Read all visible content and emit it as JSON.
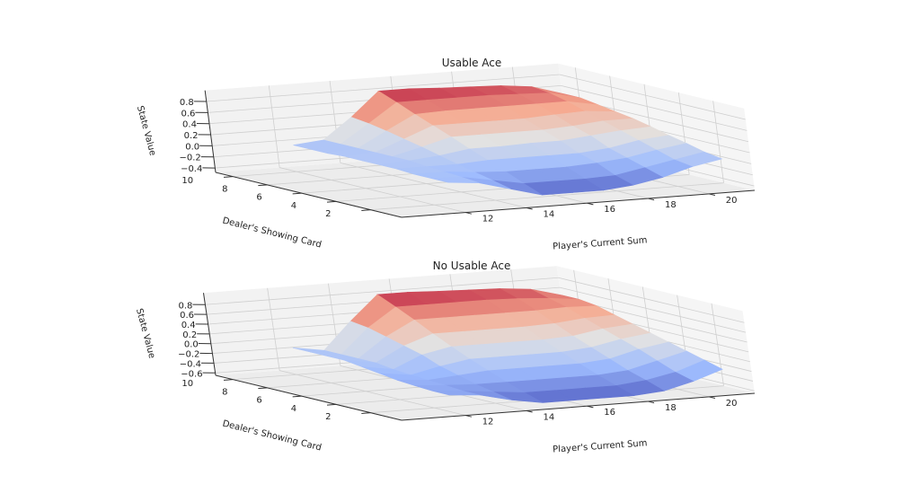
{
  "chart_data": [
    {
      "type": "surface",
      "title": "Usable Ace",
      "xlabel": "Player's Current Sum",
      "ylabel": "Dealer's Showing Card",
      "zlabel": "State Value",
      "x": [
        12,
        13,
        14,
        15,
        16,
        17,
        18,
        19,
        20,
        21
      ],
      "y": [
        1,
        2,
        3,
        4,
        5,
        6,
        7,
        8,
        9,
        10
      ],
      "xticks": [
        12,
        14,
        16,
        18,
        20
      ],
      "yticks": [
        2,
        4,
        6,
        8,
        10
      ],
      "zticks": [
        "−0.4",
        "−0.2",
        "0.0",
        "0.2",
        "0.4",
        "0.6",
        "0.8"
      ],
      "ztick_values": [
        -0.4,
        -0.2,
        0.0,
        0.2,
        0.4,
        0.6,
        0.8
      ],
      "xlim": [
        9.9,
        21.5
      ],
      "ylim": [
        0.2,
        11
      ],
      "zlim": [
        -0.48,
        1.0
      ],
      "colormap": "coolwarm",
      "z": [
        [
          0.0,
          -0.05,
          -0.2,
          -0.35,
          -0.35,
          -0.35,
          -0.3,
          -0.2,
          -0.05,
          0.05
        ],
        [
          0.0,
          -0.02,
          -0.12,
          -0.22,
          -0.22,
          -0.22,
          -0.2,
          -0.1,
          0.0,
          0.1
        ],
        [
          0.0,
          0.0,
          -0.05,
          -0.08,
          -0.08,
          -0.08,
          -0.05,
          0.0,
          0.1,
          0.18
        ],
        [
          0.02,
          0.02,
          0.02,
          0.05,
          0.05,
          0.05,
          0.05,
          0.1,
          0.2,
          0.25
        ],
        [
          0.02,
          0.05,
          0.1,
          0.18,
          0.18,
          0.2,
          0.2,
          0.25,
          0.3,
          0.33
        ],
        [
          0.02,
          0.05,
          0.18,
          0.32,
          0.32,
          0.32,
          0.32,
          0.35,
          0.4,
          0.4
        ],
        [
          0.02,
          0.05,
          0.25,
          0.45,
          0.45,
          0.45,
          0.45,
          0.48,
          0.5,
          0.45
        ],
        [
          0.0,
          0.05,
          0.32,
          0.58,
          0.6,
          0.6,
          0.6,
          0.6,
          0.6,
          0.5
        ],
        [
          0.0,
          0.05,
          0.38,
          0.72,
          0.72,
          0.72,
          0.72,
          0.7,
          0.68,
          0.55
        ],
        [
          0.0,
          0.05,
          0.42,
          0.85,
          0.85,
          0.82,
          0.8,
          0.78,
          0.72,
          0.55
        ]
      ]
    },
    {
      "type": "surface",
      "title": "No Usable Ace",
      "xlabel": "Player's Current Sum",
      "ylabel": "Dealer's Showing Card",
      "zlabel": "State Value",
      "x": [
        12,
        13,
        14,
        15,
        16,
        17,
        18,
        19,
        20,
        21
      ],
      "y": [
        1,
        2,
        3,
        4,
        5,
        6,
        7,
        8,
        9,
        10
      ],
      "xticks": [
        12,
        14,
        16,
        18,
        20
      ],
      "yticks": [
        2,
        4,
        6,
        8,
        10
      ],
      "zticks": [
        "−0.6",
        "−0.4",
        "−0.2",
        "0.0",
        "0.2",
        "0.4",
        "0.6",
        "0.8"
      ],
      "ztick_values": [
        -0.6,
        -0.4,
        -0.2,
        0.0,
        0.2,
        0.4,
        0.6,
        0.8
      ],
      "xlim": [
        9.9,
        21.5
      ],
      "ylim": [
        0.2,
        11
      ],
      "zlim": [
        -0.65,
        1.04
      ],
      "colormap": "coolwarm",
      "z": [
        [
          -0.3,
          -0.35,
          -0.5,
          -0.6,
          -0.6,
          -0.6,
          -0.6,
          -0.55,
          -0.4,
          -0.2
        ],
        [
          -0.3,
          -0.35,
          -0.42,
          -0.48,
          -0.48,
          -0.48,
          -0.48,
          -0.42,
          -0.3,
          -0.1
        ],
        [
          -0.28,
          -0.32,
          -0.35,
          -0.35,
          -0.35,
          -0.35,
          -0.35,
          -0.3,
          -0.15,
          0.0
        ],
        [
          -0.25,
          -0.3,
          -0.25,
          -0.2,
          -0.2,
          -0.2,
          -0.2,
          -0.15,
          0.0,
          0.1
        ],
        [
          -0.2,
          -0.28,
          -0.15,
          -0.05,
          -0.05,
          -0.05,
          -0.05,
          0.0,
          0.12,
          0.2
        ],
        [
          -0.15,
          -0.25,
          0.0,
          0.12,
          0.12,
          0.12,
          0.12,
          0.15,
          0.25,
          0.3
        ],
        [
          -0.1,
          -0.2,
          0.1,
          0.3,
          0.3,
          0.3,
          0.3,
          0.32,
          0.38,
          0.4
        ],
        [
          -0.1,
          -0.2,
          0.2,
          0.5,
          0.5,
          0.5,
          0.5,
          0.5,
          0.52,
          0.5
        ],
        [
          -0.1,
          -0.2,
          0.3,
          0.68,
          0.68,
          0.68,
          0.68,
          0.66,
          0.62,
          0.55
        ],
        [
          -0.1,
          -0.2,
          0.35,
          0.85,
          0.85,
          0.82,
          0.8,
          0.78,
          0.72,
          0.55
        ]
      ]
    }
  ]
}
